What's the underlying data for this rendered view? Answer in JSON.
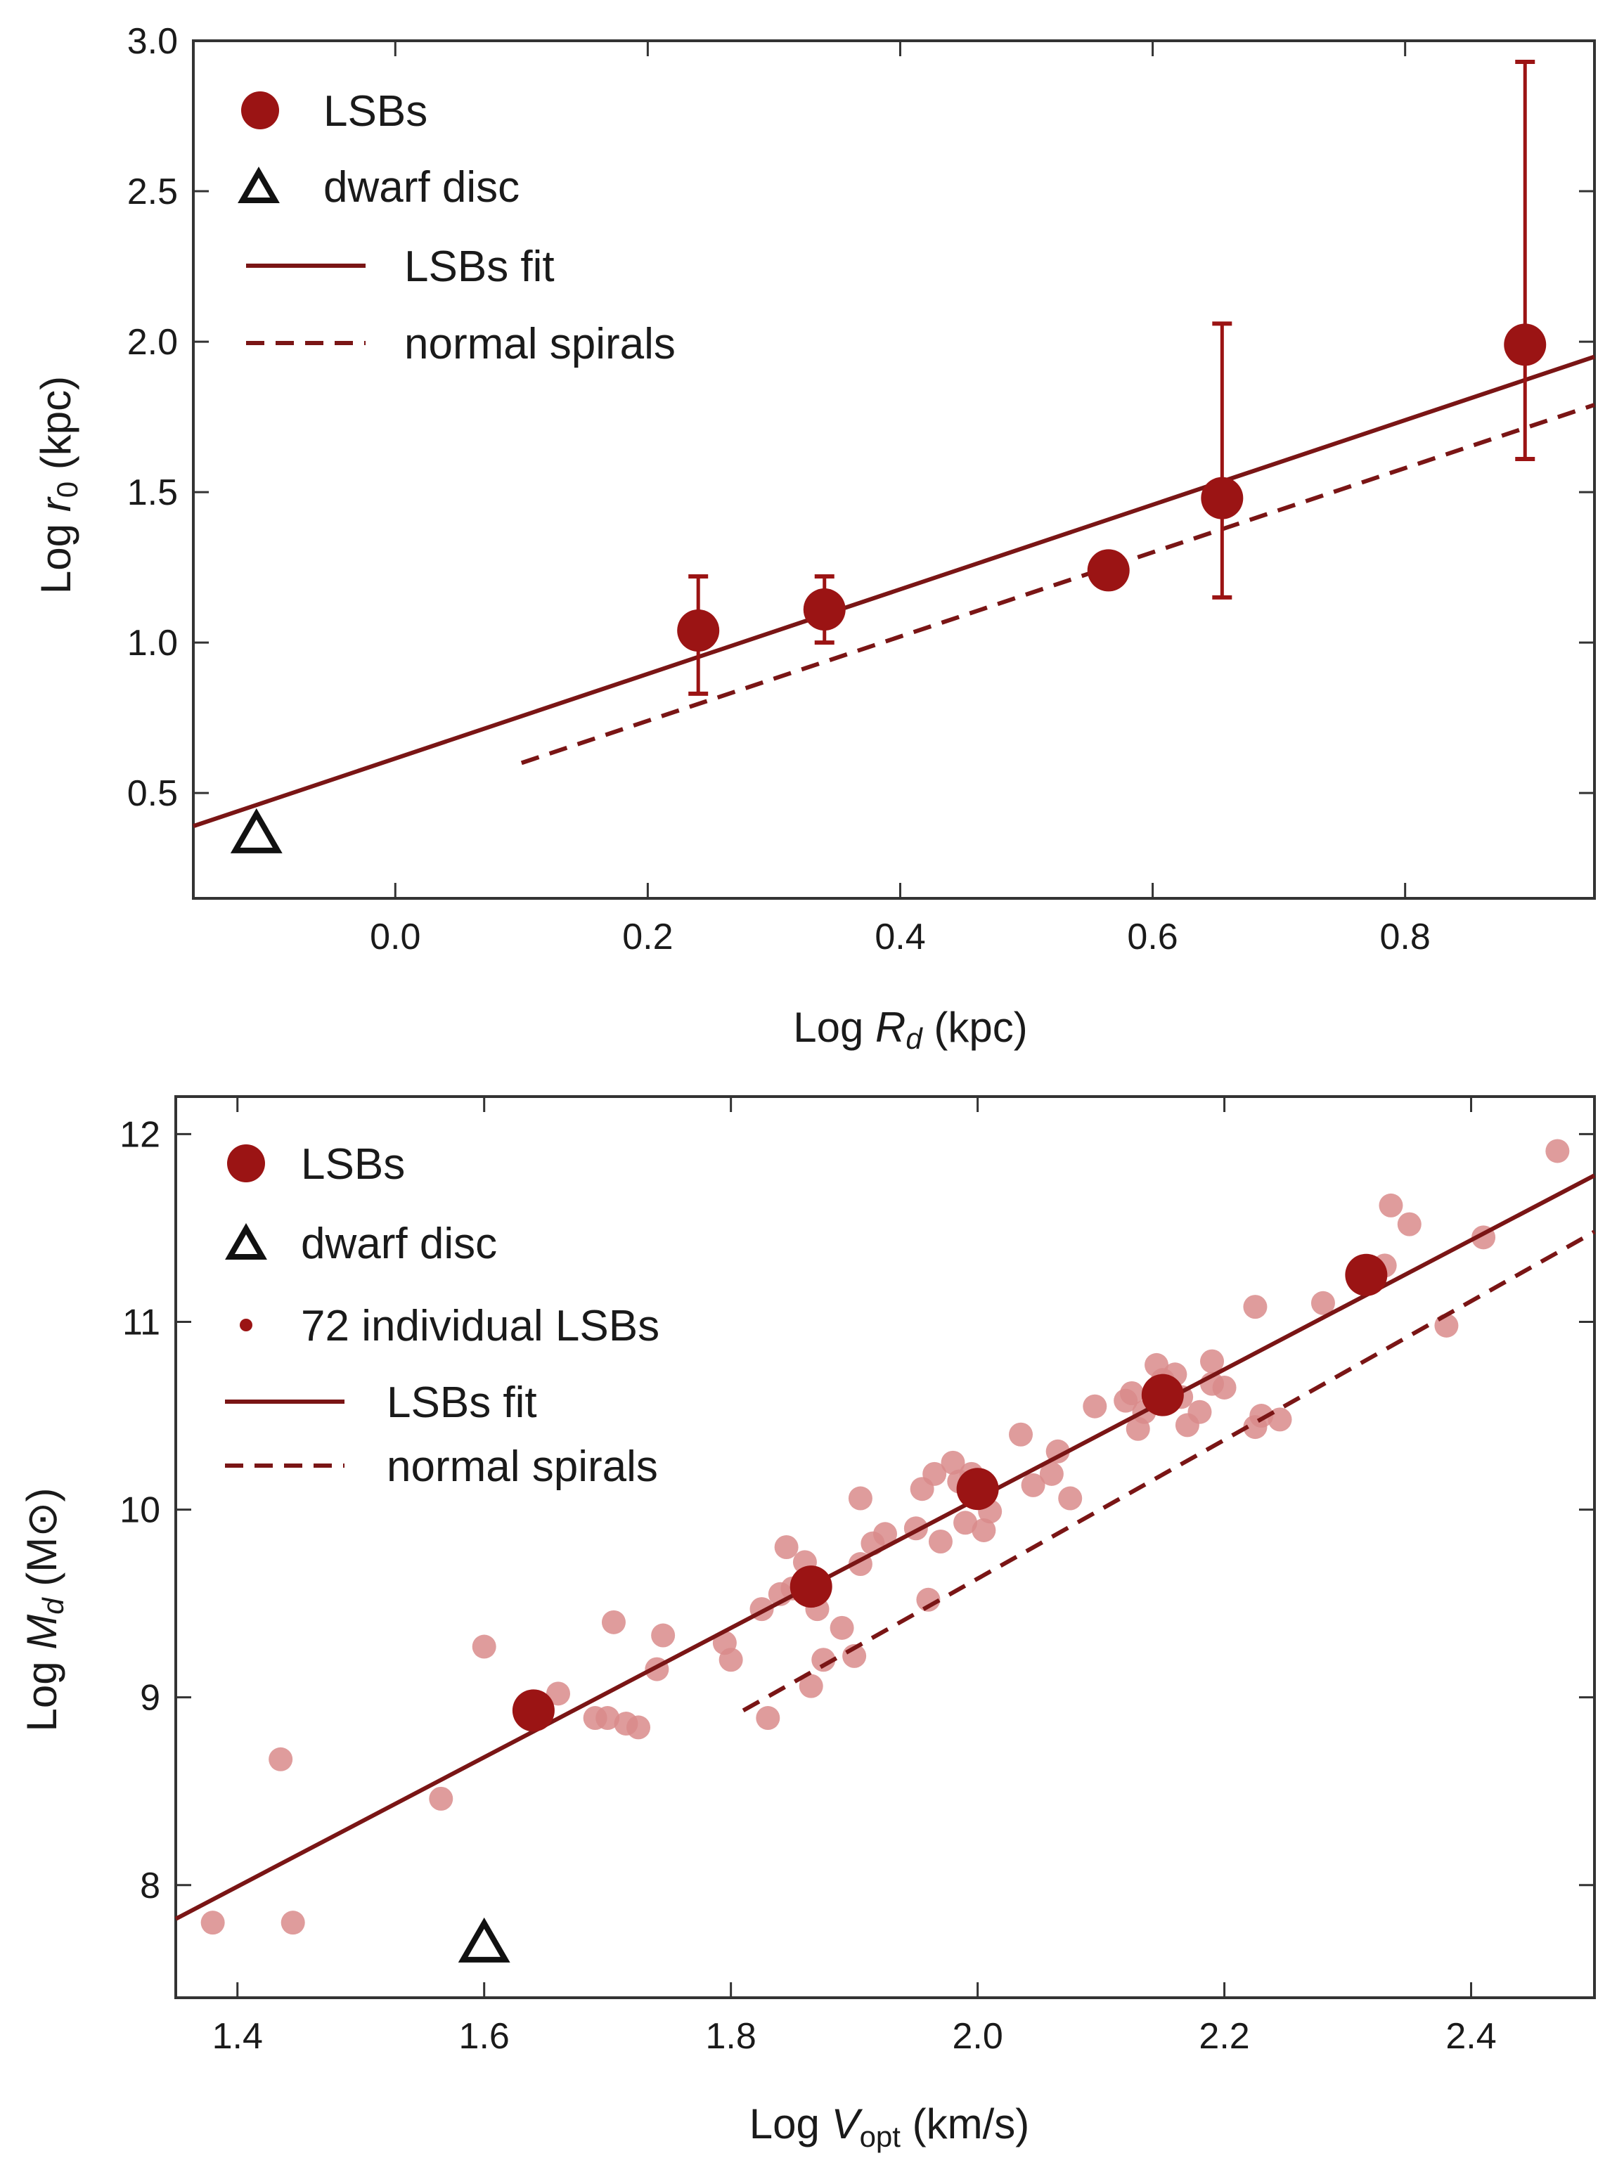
{
  "colors": {
    "lsb": "#9b1414",
    "lsb_individual": "#d98b8b",
    "fit_line": "#7a1515",
    "dwarf_edge": "#111111",
    "frame": "#333333"
  },
  "chart_data": [
    {
      "type": "scatter",
      "xlabel": {
        "prefix": "Log ",
        "symbol": "R",
        "subscript": "d",
        "suffix": " (kpc)"
      },
      "ylabel": {
        "prefix": "Log ",
        "symbol": "r",
        "subscript": "0",
        "suffix": " (kpc)"
      },
      "xlim": [
        -0.16,
        0.95
      ],
      "ylim": [
        0.15,
        3.0
      ],
      "xticks": [
        0.0,
        0.2,
        0.4,
        0.6,
        0.8
      ],
      "xtick_labels": [
        "0.0",
        "0.2",
        "0.4",
        "0.6",
        "0.8"
      ],
      "yticks": [
        0.5,
        1.0,
        1.5,
        2.0,
        2.5,
        3.0
      ],
      "ytick_labels": [
        "0.5",
        "1.0",
        "1.5",
        "2.0",
        "2.5",
        "3.0"
      ],
      "grid": false,
      "legend_position": "top-left",
      "legend": [
        {
          "label": "LSBs",
          "marker": "filled-circle"
        },
        {
          "label": "dwarf disc",
          "marker": "open-triangle"
        },
        {
          "label": "LSBs fit",
          "marker": "solid-line"
        },
        {
          "label": "normal spirals",
          "marker": "dashed-line"
        }
      ],
      "lsbs": [
        {
          "x": 0.24,
          "y": 1.04,
          "y_low": 0.83,
          "y_high": 1.22
        },
        {
          "x": 0.34,
          "y": 1.11,
          "y_low": 1.0,
          "y_high": 1.22
        },
        {
          "x": 0.565,
          "y": 1.24,
          "y_low": 1.24,
          "y_high": 1.24
        },
        {
          "x": 0.655,
          "y": 1.48,
          "y_low": 1.15,
          "y_high": 2.06
        },
        {
          "x": 0.895,
          "y": 1.99,
          "y_low": 1.61,
          "y_high": 2.93
        }
      ],
      "dwarf_disc": {
        "x": -0.11,
        "y": 0.37
      },
      "lsbs_fit": {
        "x": [
          -0.16,
          0.95
        ],
        "y": [
          0.39,
          1.95
        ]
      },
      "normal_spirals": {
        "x": [
          0.1,
          0.95
        ],
        "y": [
          0.6,
          1.79
        ]
      }
    },
    {
      "type": "scatter",
      "xlabel": {
        "prefix": "Log ",
        "symbol": "V",
        "subscript": "opt",
        "suffix": " (km/s)"
      },
      "ylabel": {
        "prefix": "Log ",
        "symbol": "M",
        "subscript": "d",
        "suffix": " (M⊙)"
      },
      "xlim": [
        1.35,
        2.5
      ],
      "ylim": [
        7.4,
        12.2
      ],
      "xticks": [
        1.4,
        1.6,
        1.8,
        2.0,
        2.2,
        2.4
      ],
      "xtick_labels": [
        "1.4",
        "1.6",
        "1.8",
        "2.0",
        "2.2",
        "2.4"
      ],
      "yticks": [
        8,
        9,
        10,
        11,
        12
      ],
      "ytick_labels": [
        "8",
        "9",
        "10",
        "11",
        "12"
      ],
      "grid": false,
      "legend_position": "top-left",
      "legend": [
        {
          "label": "LSBs",
          "marker": "filled-circle"
        },
        {
          "label": "dwarf disc",
          "marker": "open-triangle"
        },
        {
          "label": "72 individual LSBs",
          "marker": "small-dot"
        },
        {
          "label": "LSBs fit",
          "marker": "solid-line"
        },
        {
          "label": "normal spirals",
          "marker": "dashed-line"
        }
      ],
      "lsbs": [
        {
          "x": 1.64,
          "y": 8.93
        },
        {
          "x": 1.865,
          "y": 9.59
        },
        {
          "x": 2.0,
          "y": 10.11
        },
        {
          "x": 2.15,
          "y": 10.61
        },
        {
          "x": 2.315,
          "y": 11.25
        }
      ],
      "individual_lsbs": [
        [
          1.38,
          7.8
        ],
        [
          1.435,
          8.67
        ],
        [
          1.445,
          7.8
        ],
        [
          1.565,
          8.46
        ],
        [
          1.6,
          9.27
        ],
        [
          1.66,
          9.02
        ],
        [
          1.69,
          8.89
        ],
        [
          1.7,
          8.89
        ],
        [
          1.705,
          9.4
        ],
        [
          1.715,
          8.86
        ],
        [
          1.725,
          8.84
        ],
        [
          1.745,
          9.33
        ],
        [
          1.74,
          9.15
        ],
        [
          1.795,
          9.29
        ],
        [
          1.8,
          9.2
        ],
        [
          1.825,
          9.47
        ],
        [
          1.83,
          8.89
        ],
        [
          1.845,
          9.8
        ],
        [
          1.85,
          9.58
        ],
        [
          1.86,
          9.72
        ],
        [
          1.865,
          9.06
        ],
        [
          1.87,
          9.47
        ],
        [
          1.875,
          9.2
        ],
        [
          1.89,
          9.37
        ],
        [
          1.9,
          9.22
        ],
        [
          1.905,
          10.06
        ],
        [
          1.905,
          9.71
        ],
        [
          1.915,
          9.82
        ],
        [
          1.925,
          9.87
        ],
        [
          1.955,
          10.11
        ],
        [
          1.96,
          9.52
        ],
        [
          1.965,
          10.19
        ],
        [
          1.97,
          9.83
        ],
        [
          1.985,
          10.15
        ],
        [
          1.99,
          9.93
        ],
        [
          1.995,
          10.19
        ],
        [
          2.0,
          10.15
        ],
        [
          2.005,
          9.89
        ],
        [
          2.01,
          9.99
        ],
        [
          2.035,
          10.4
        ],
        [
          2.045,
          10.13
        ],
        [
          2.06,
          10.19
        ],
        [
          2.065,
          10.31
        ],
        [
          2.075,
          10.06
        ],
        [
          2.12,
          10.58
        ],
        [
          2.125,
          10.62
        ],
        [
          2.135,
          10.52
        ],
        [
          2.145,
          10.77
        ],
        [
          2.15,
          10.69
        ],
        [
          2.16,
          10.72
        ],
        [
          2.165,
          10.6
        ],
        [
          2.18,
          10.52
        ],
        [
          2.19,
          10.67
        ],
        [
          2.19,
          10.79
        ],
        [
          2.2,
          10.65
        ],
        [
          2.225,
          10.44
        ],
        [
          2.225,
          11.08
        ],
        [
          2.245,
          10.48
        ],
        [
          2.335,
          11.62
        ],
        [
          2.35,
          11.52
        ],
        [
          2.38,
          10.98
        ],
        [
          2.41,
          11.45
        ],
        [
          2.47,
          11.91
        ],
        [
          2.13,
          10.43
        ],
        [
          2.095,
          10.55
        ],
        [
          1.95,
          9.9
        ],
        [
          2.23,
          10.5
        ],
        [
          2.33,
          11.3
        ],
        [
          1.84,
          9.55
        ],
        [
          2.28,
          11.1
        ],
        [
          1.98,
          10.25
        ],
        [
          2.17,
          10.45
        ]
      ],
      "dwarf_disc": {
        "x": 1.6,
        "y": 7.7
      },
      "lsbs_fit": {
        "x": [
          1.35,
          2.5
        ],
        "y": [
          7.82,
          11.78
        ]
      },
      "normal_spirals": {
        "x": [
          1.81,
          2.5
        ],
        "y": [
          8.93,
          11.48
        ]
      }
    }
  ]
}
